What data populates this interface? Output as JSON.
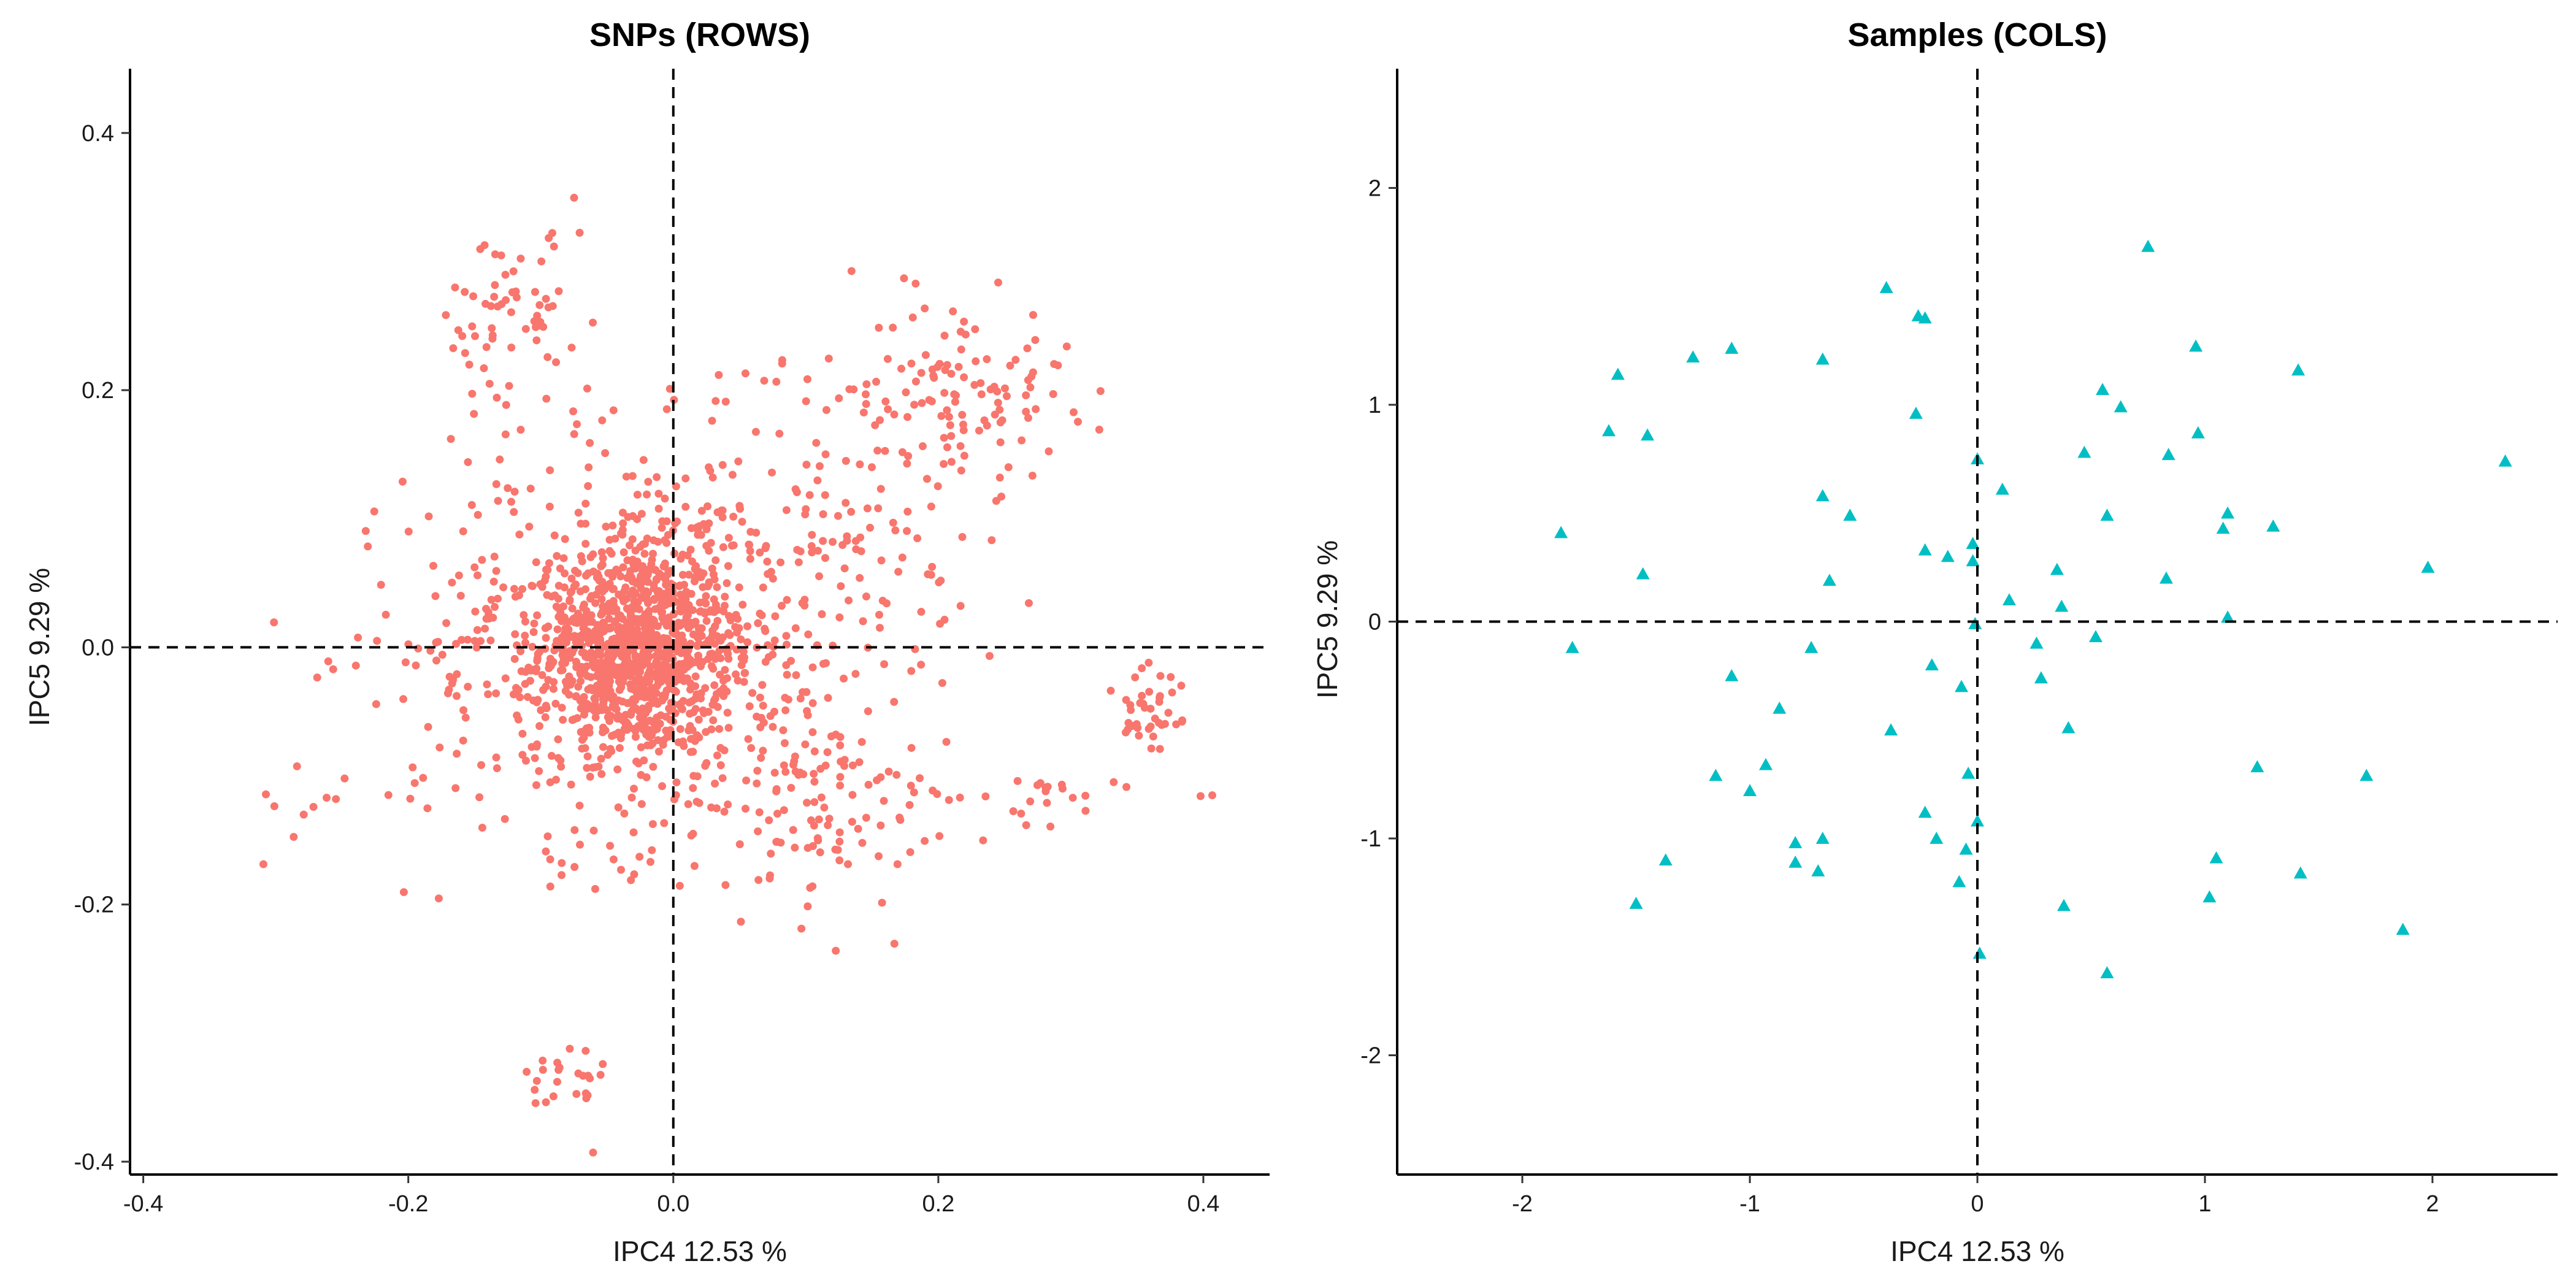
{
  "chart_data": [
    {
      "type": "scatter",
      "title": "SNPs (ROWS)",
      "xlabel": "IPC4 12.53 %",
      "ylabel": "IPC5 9.29 %",
      "xlim": [
        -0.41,
        0.45
      ],
      "ylim": [
        -0.41,
        0.45
      ],
      "x_ticks": [
        -0.4,
        -0.2,
        0.0,
        0.2,
        0.4
      ],
      "y_ticks": [
        -0.4,
        -0.2,
        0.0,
        0.2,
        0.4
      ],
      "x_tick_labels": [
        "-0.4",
        "-0.2",
        "0.0",
        "0.2",
        "0.4"
      ],
      "y_tick_labels": [
        "-0.4",
        "-0.2",
        "0.0",
        "0.2",
        "0.4"
      ],
      "grid": false,
      "reference_lines": {
        "x": 0,
        "y": 0,
        "style": "dashed"
      },
      "marker": "circle",
      "color": "#F8766D",
      "clusters": [
        {
          "cx": -0.03,
          "cy": 0.0,
          "sx": 0.035,
          "sy": 0.04,
          "n": 900
        },
        {
          "cx": -0.02,
          "cy": 0.0,
          "sx": 0.09,
          "sy": 0.08,
          "n": 650
        },
        {
          "cx": -0.12,
          "cy": 0.25,
          "sx": 0.03,
          "sy": 0.04,
          "n": 70
        },
        {
          "cx": 0.22,
          "cy": 0.2,
          "sx": 0.04,
          "sy": 0.035,
          "n": 110
        },
        {
          "cx": 0.13,
          "cy": 0.12,
          "sx": 0.05,
          "sy": 0.06,
          "n": 90
        },
        {
          "cx": 0.36,
          "cy": -0.05,
          "sx": 0.015,
          "sy": 0.025,
          "n": 40
        },
        {
          "cx": -0.08,
          "cy": -0.34,
          "sx": 0.015,
          "sy": 0.02,
          "n": 25
        },
        {
          "cx": 0.25,
          "cy": -0.12,
          "sx": 0.06,
          "sy": 0.015,
          "n": 35
        },
        {
          "cx": -0.25,
          "cy": -0.12,
          "sx": 0.03,
          "sy": 0.01,
          "n": 10
        },
        {
          "cx": 0.12,
          "cy": -0.12,
          "sx": 0.03,
          "sy": 0.04,
          "n": 80
        }
      ]
    },
    {
      "type": "scatter",
      "title": "Samples (COLS)",
      "xlabel": "IPC4 12.53 %",
      "ylabel": "IPC5 9.29 %",
      "xlim": [
        -2.55,
        2.55
      ],
      "ylim": [
        -2.55,
        2.55
      ],
      "x_ticks": [
        -2,
        -1,
        0,
        1,
        2
      ],
      "y_ticks": [
        -2,
        -1,
        0,
        1,
        2
      ],
      "x_tick_labels": [
        "-2",
        "-1",
        "0",
        "1",
        "2"
      ],
      "y_tick_labels": [
        "-2",
        "-1",
        "0",
        "1",
        "2"
      ],
      "grid": false,
      "reference_lines": {
        "x": 0,
        "y": 0,
        "style": "dashed"
      },
      "marker": "triangle",
      "color": "#00BFC4",
      "points": [
        [
          -1.83,
          0.41
        ],
        [
          -1.78,
          -0.12
        ],
        [
          -1.62,
          0.88
        ],
        [
          -1.58,
          1.14
        ],
        [
          -1.5,
          -1.3
        ],
        [
          -1.47,
          0.22
        ],
        [
          -1.45,
          0.86
        ],
        [
          -1.37,
          -1.1
        ],
        [
          -1.25,
          1.22
        ],
        [
          -1.15,
          -0.71
        ],
        [
          -1.08,
          1.26
        ],
        [
          -1.08,
          -0.25
        ],
        [
          -1.0,
          -0.78
        ],
        [
          -0.93,
          -0.66
        ],
        [
          -0.87,
          -0.4
        ],
        [
          -0.8,
          -1.02
        ],
        [
          -0.8,
          -1.11
        ],
        [
          -0.73,
          -0.12
        ],
        [
          -0.7,
          -1.15
        ],
        [
          -0.68,
          -1.0
        ],
        [
          -0.68,
          1.21
        ],
        [
          -0.68,
          0.58
        ],
        [
          -0.65,
          0.19
        ],
        [
          -0.56,
          0.49
        ],
        [
          -0.4,
          1.54
        ],
        [
          -0.38,
          -0.5
        ],
        [
          -0.27,
          0.96
        ],
        [
          -0.26,
          1.41
        ],
        [
          -0.23,
          1.4
        ],
        [
          -0.23,
          0.33
        ],
        [
          -0.23,
          -0.88
        ],
        [
          -0.2,
          -0.2
        ],
        [
          -0.18,
          -1.0
        ],
        [
          -0.13,
          0.3
        ],
        [
          -0.08,
          -1.2
        ],
        [
          -0.07,
          -0.3
        ],
        [
          -0.05,
          -1.05
        ],
        [
          -0.04,
          -0.7
        ],
        [
          -0.02,
          0.36
        ],
        [
          -0.02,
          0.28
        ],
        [
          -0.01,
          -0.01
        ],
        [
          0.0,
          0.75
        ],
        [
          0.0,
          -0.92
        ],
        [
          0.01,
          -1.53
        ],
        [
          0.11,
          0.61
        ],
        [
          0.14,
          0.1
        ],
        [
          0.26,
          -0.1
        ],
        [
          0.28,
          -0.26
        ],
        [
          0.35,
          0.24
        ],
        [
          0.37,
          0.07
        ],
        [
          0.38,
          -1.31
        ],
        [
          0.4,
          -0.49
        ],
        [
          0.47,
          0.78
        ],
        [
          0.52,
          -0.07
        ],
        [
          0.55,
          1.07
        ],
        [
          0.57,
          0.49
        ],
        [
          0.57,
          -1.62
        ],
        [
          0.63,
          0.99
        ],
        [
          0.75,
          1.73
        ],
        [
          0.83,
          0.2
        ],
        [
          0.84,
          0.77
        ],
        [
          0.96,
          1.27
        ],
        [
          0.97,
          0.87
        ],
        [
          1.02,
          -1.27
        ],
        [
          1.05,
          -1.09
        ],
        [
          1.08,
          0.43
        ],
        [
          1.1,
          0.5
        ],
        [
          1.1,
          0.02
        ],
        [
          1.23,
          -0.67
        ],
        [
          1.3,
          0.44
        ],
        [
          1.41,
          1.16
        ],
        [
          1.42,
          -1.16
        ],
        [
          1.71,
          -0.71
        ],
        [
          1.87,
          -1.42
        ],
        [
          1.98,
          0.25
        ],
        [
          2.32,
          0.74
        ]
      ]
    }
  ]
}
